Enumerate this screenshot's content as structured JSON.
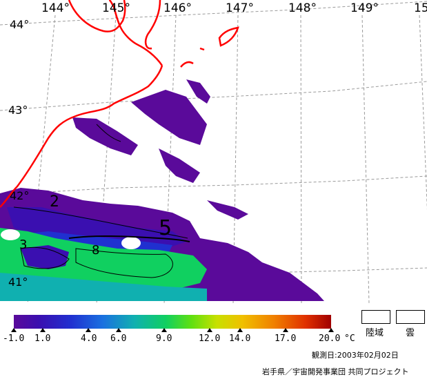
{
  "map": {
    "longitude_labels": [
      "144°",
      "145°",
      "146°",
      "147°",
      "148°",
      "149°",
      "15"
    ],
    "latitude_labels": [
      "44°",
      "43°",
      "42°",
      "41°"
    ],
    "contour_labels": [
      "2",
      "5",
      "3",
      "8"
    ]
  },
  "colorbar": {
    "ticks": [
      "-1.0",
      "1.0",
      "4.0",
      "6.0",
      "9.0",
      "12.0",
      "14.0",
      "17.0",
      "20.0"
    ],
    "unit": "°C",
    "colors": [
      "#5a0a9a",
      "#2030d0",
      "#10b0b0",
      "#10d060",
      "#c8e000",
      "#f08000",
      "#a00000"
    ]
  },
  "legend": {
    "land_label": "陸域",
    "cloud_label": "雲"
  },
  "footer": {
    "observation_date": "観測日:2003年02月02日",
    "credit": "岩手県／宇宙開発事業団 共同プロジェクト"
  }
}
